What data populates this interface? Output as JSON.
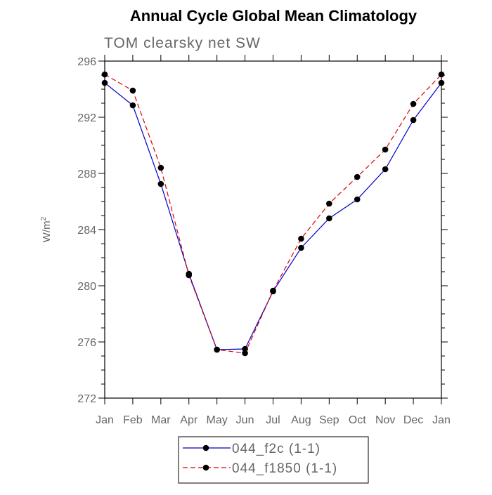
{
  "chart_data": {
    "type": "line",
    "title": "Annual Cycle Global Mean Climatology",
    "subtitle": "TOM clearsky net SW",
    "ylabel_base": "W/m",
    "ylabel_sup": "2",
    "xlabel": "",
    "categories": [
      "Jan",
      "Feb",
      "Mar",
      "Apr",
      "May",
      "Jun",
      "Jul",
      "Aug",
      "Sep",
      "Oct",
      "Nov",
      "Dec",
      "Jan"
    ],
    "ylim": [
      272,
      296
    ],
    "yticks": [
      272,
      276,
      280,
      284,
      288,
      292,
      296
    ],
    "grid": false,
    "legend_position": "bottom",
    "series": [
      {
        "name": "044_f2c (1-1)",
        "color": "#0000cc",
        "dash": "solid",
        "marker": "filled-circle",
        "values": [
          294.45,
          292.85,
          287.25,
          280.85,
          275.45,
          275.5,
          279.6,
          282.7,
          284.8,
          286.15,
          288.3,
          291.8,
          294.45
        ]
      },
      {
        "name": "044_f1850 (1-1)",
        "color": "#dd0000",
        "dash": "dashed",
        "marker": "filled-circle",
        "values": [
          295.05,
          293.9,
          288.4,
          280.75,
          275.45,
          275.2,
          279.65,
          283.35,
          285.85,
          287.75,
          289.7,
          292.95,
          295.05
        ]
      }
    ]
  }
}
